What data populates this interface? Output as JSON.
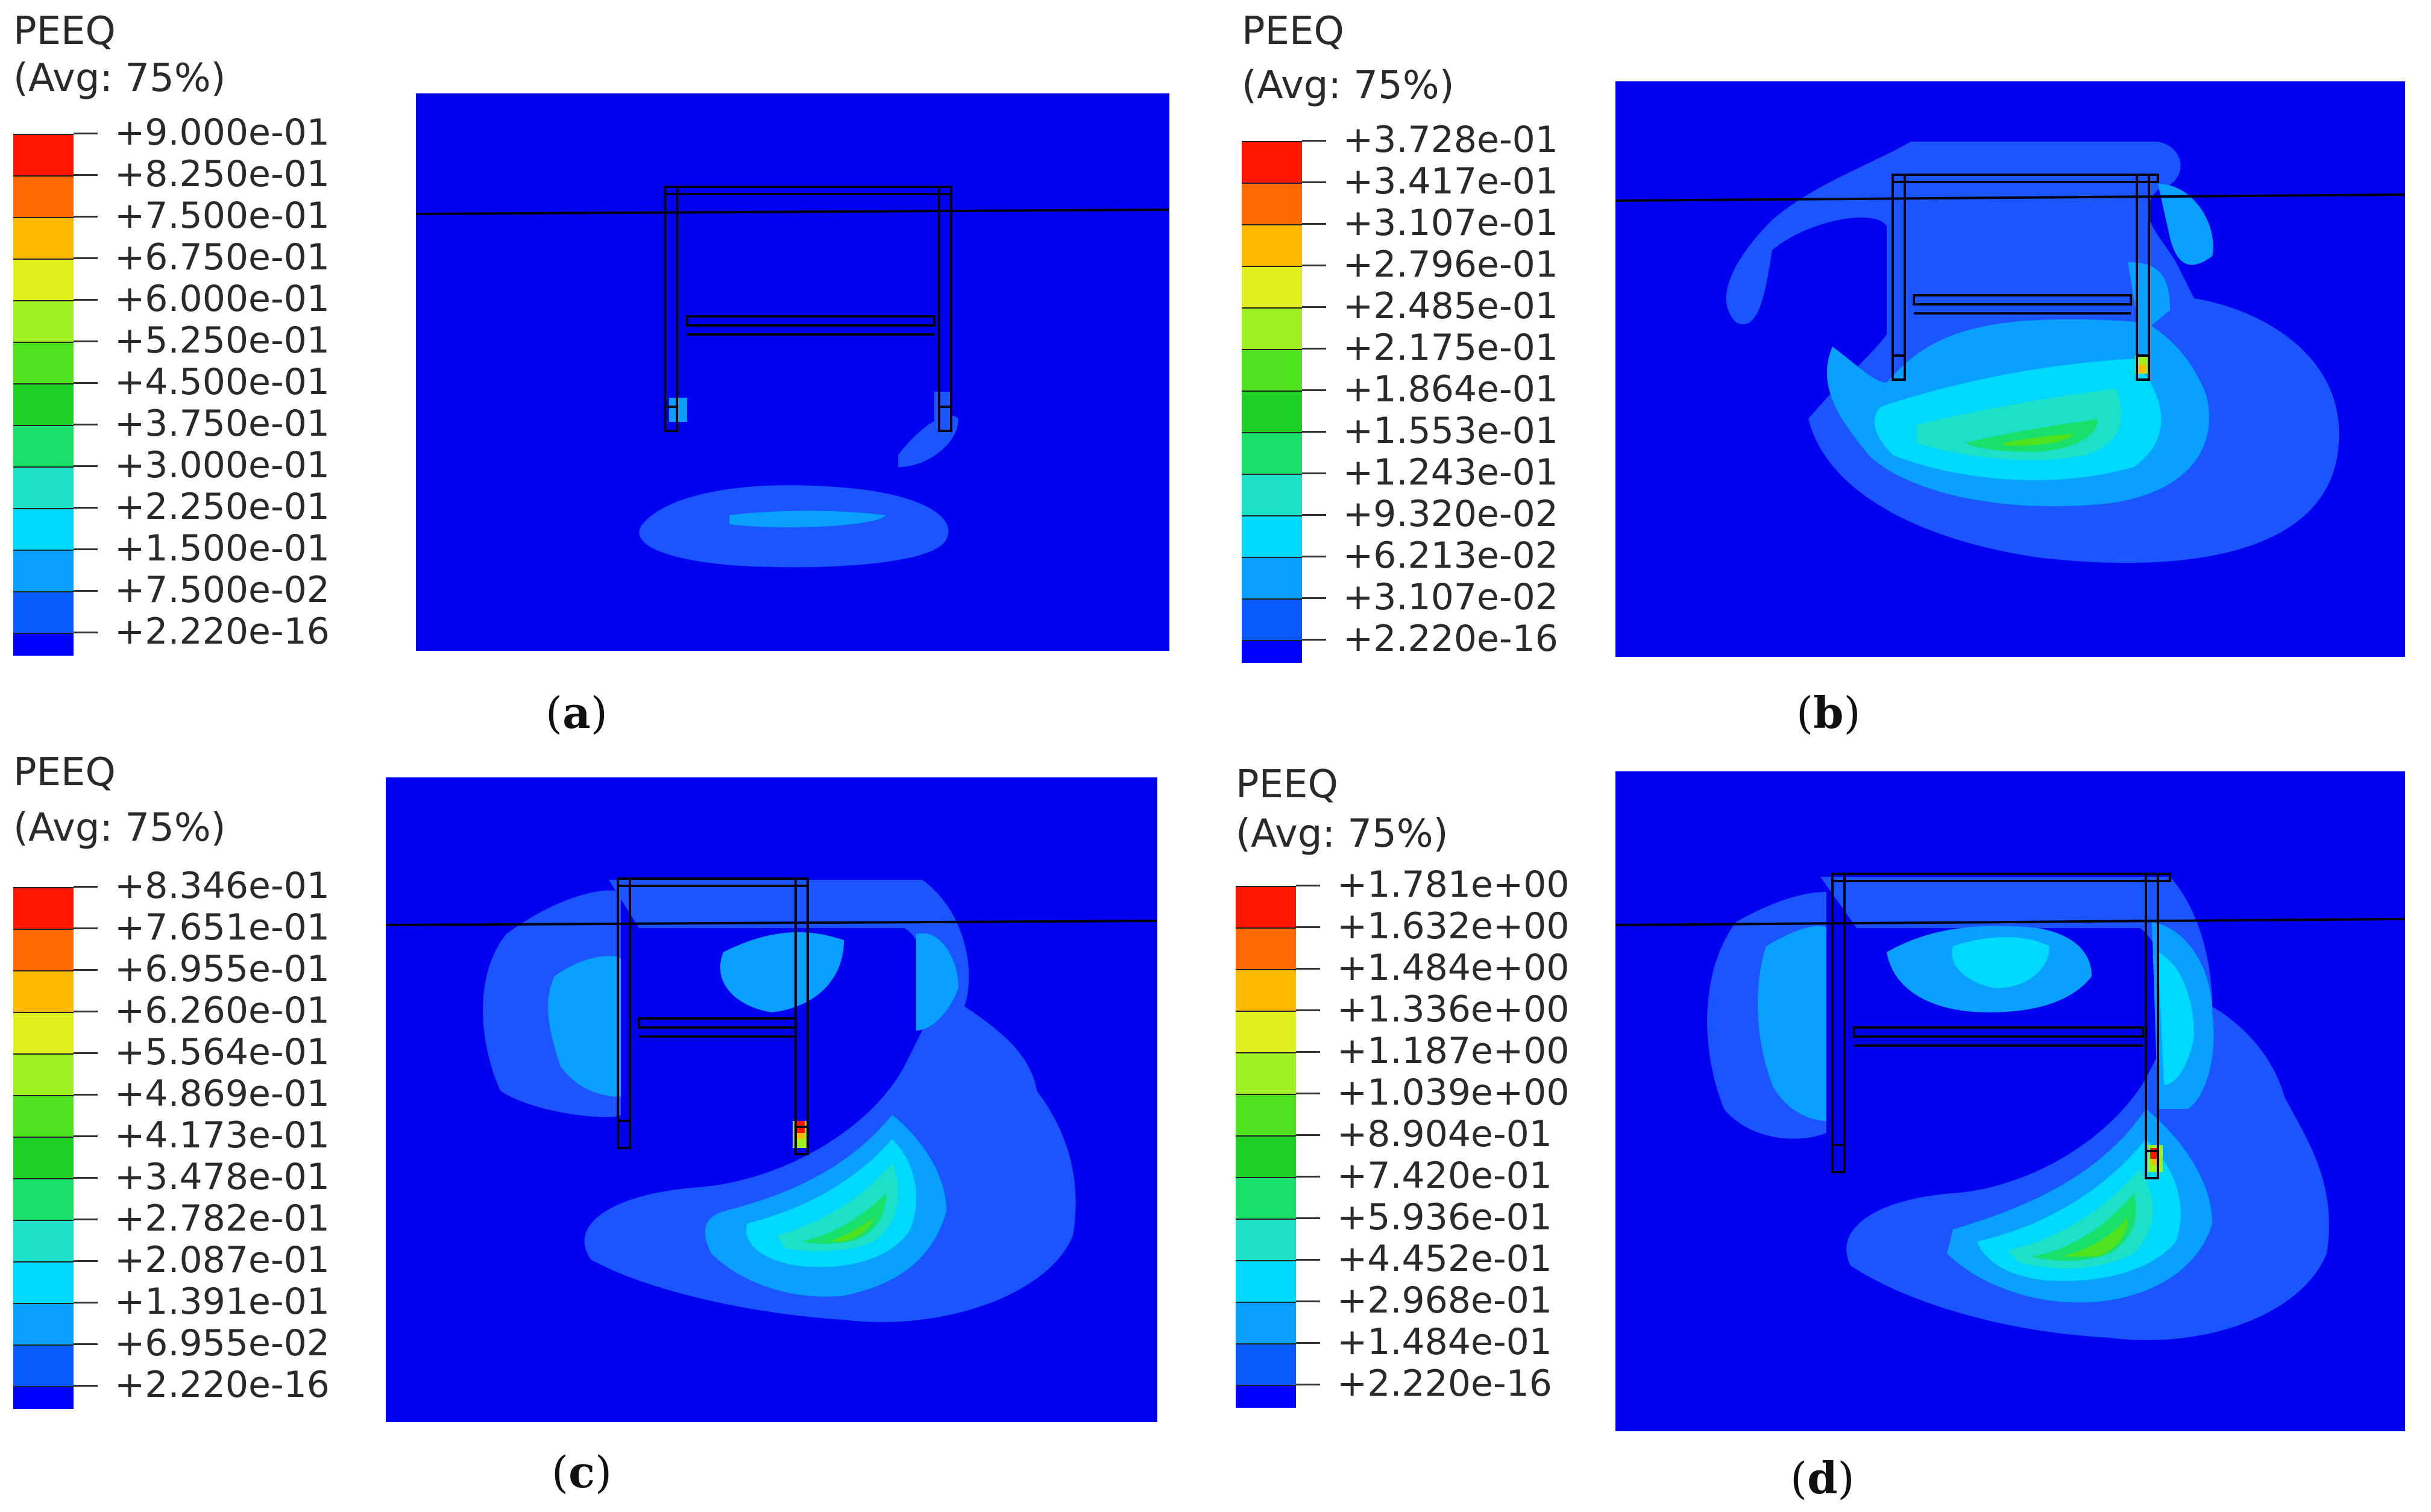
{
  "colors": [
    "#0000ff",
    "#0a5bff",
    "#0aa0ff",
    "#00d9ff",
    "#1de0c8",
    "#19e06a",
    "#1fd025",
    "#4fe21e",
    "#9ef022",
    "#e0f01e",
    "#ffb800",
    "#ff6a00",
    "#ff1600"
  ],
  "panels": [
    {
      "id": "a",
      "legend_title": "PEEQ",
      "legend_avg": "(Avg: 75%)",
      "ticks": [
        "+9.000e-01",
        "+8.250e-01",
        "+7.500e-01",
        "+6.750e-01",
        "+6.000e-01",
        "+5.250e-01",
        "+4.500e-01",
        "+3.750e-01",
        "+3.000e-01",
        "+2.250e-01",
        "+1.500e-01",
        "+7.500e-02",
        "+2.220e-16"
      ],
      "caption": "a"
    },
    {
      "id": "b",
      "legend_title": "PEEQ",
      "legend_avg": "(Avg: 75%)",
      "ticks": [
        "+3.728e-01",
        "+3.417e-01",
        "+3.107e-01",
        "+2.796e-01",
        "+2.485e-01",
        "+2.175e-01",
        "+1.864e-01",
        "+1.553e-01",
        "+1.243e-01",
        "+9.320e-02",
        "+6.213e-02",
        "+3.107e-02",
        "+2.220e-16"
      ],
      "caption": "b"
    },
    {
      "id": "c",
      "legend_title": "PEEQ",
      "legend_avg": "(Avg: 75%)",
      "ticks": [
        "+8.346e-01",
        "+7.651e-01",
        "+6.955e-01",
        "+6.260e-01",
        "+5.564e-01",
        "+4.869e-01",
        "+4.173e-01",
        "+3.478e-01",
        "+2.782e-01",
        "+2.087e-01",
        "+1.391e-01",
        "+6.955e-02",
        "+2.220e-16"
      ],
      "caption": "c"
    },
    {
      "id": "d",
      "legend_title": "PEEQ",
      "legend_avg": "(Avg: 75%)",
      "ticks": [
        "+1.781e+00",
        "+1.632e+00",
        "+1.484e+00",
        "+1.336e+00",
        "+1.187e+00",
        "+1.039e+00",
        "+8.904e-01",
        "+7.420e-01",
        "+5.936e-01",
        "+4.452e-01",
        "+2.968e-01",
        "+1.484e-01",
        "+2.220e-16"
      ],
      "caption": "d"
    }
  ]
}
